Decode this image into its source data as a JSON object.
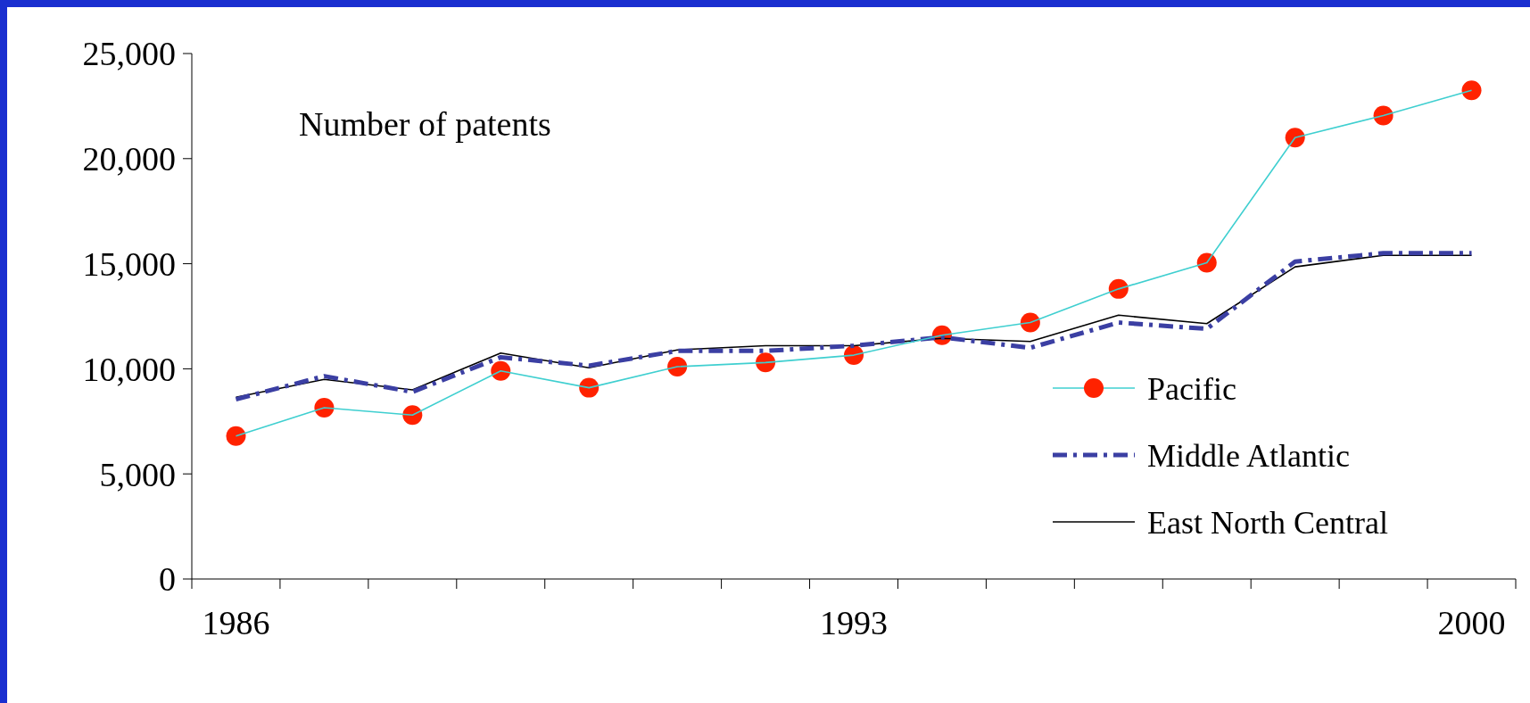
{
  "chart_data": {
    "type": "line",
    "title": "Number of patents",
    "categories": [
      "1986",
      null,
      null,
      null,
      null,
      null,
      null,
      "1993",
      null,
      null,
      null,
      null,
      null,
      null,
      "2000"
    ],
    "series": [
      {
        "name": "Pacific",
        "color": "#3fcfd0",
        "marker": "circle",
        "colors": [
          "#ff2200",
          "#ff2200",
          "#ff2200",
          "#ff2200",
          "#ff2200",
          "#ff2200",
          "#ff2200",
          "#ff2200",
          "#ff2200",
          "#ff2200",
          "#ff2200",
          "#ff2200",
          "#ff2200",
          "#ff2200",
          "#ff2200"
        ],
        "line_style": "solid",
        "values": [
          6800,
          8150,
          7800,
          9900,
          9100,
          10100,
          10300,
          10650,
          11600,
          12200,
          13800,
          15050,
          21000,
          22050,
          23250
        ]
      },
      {
        "name": "Middle Atlantic",
        "color": "#3b3fa3",
        "marker": "none",
        "line_style": "dashdot",
        "values": [
          8550,
          9650,
          8900,
          10550,
          10150,
          10850,
          10850,
          11100,
          11500,
          11000,
          12200,
          11900,
          15100,
          15500,
          15500
        ]
      },
      {
        "name": "East North Central",
        "color": "#000000",
        "marker": "none",
        "line_style": "solid",
        "values": [
          8650,
          9500,
          9000,
          10750,
          10050,
          10900,
          11100,
          11100,
          11450,
          11300,
          12550,
          12150,
          14850,
          15400,
          15400
        ]
      }
    ],
    "ylim": [
      0,
      25000
    ],
    "yticks": [
      {
        "value": 0,
        "label": "0"
      },
      {
        "value": 5000,
        "label": "5,000"
      },
      {
        "value": 10000,
        "label": "10,000"
      },
      {
        "value": 15000,
        "label": "15,000"
      },
      {
        "value": 20000,
        "label": "20,000"
      },
      {
        "value": 25000,
        "label": "25,000"
      }
    ],
    "grid": false,
    "legend": "bottom right"
  }
}
